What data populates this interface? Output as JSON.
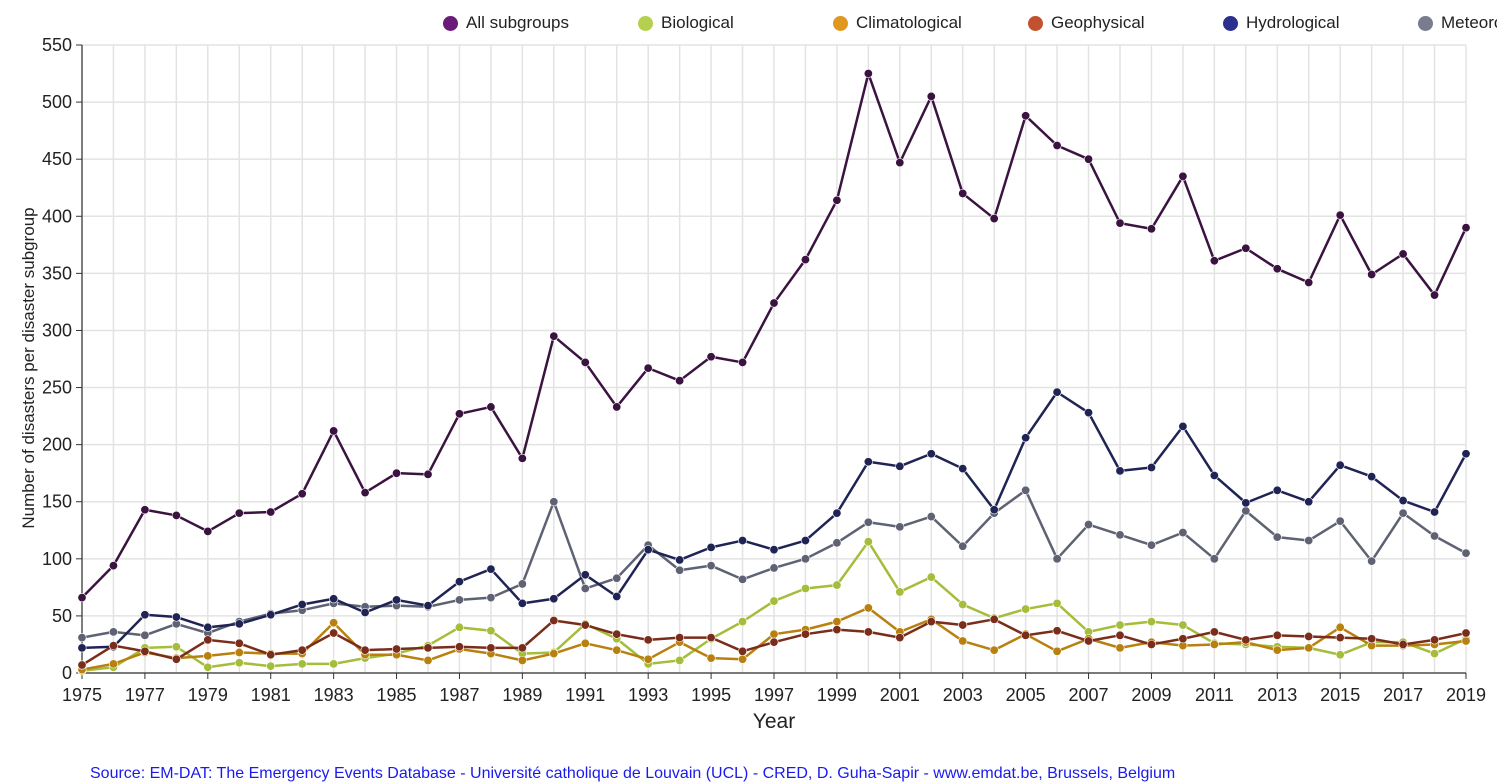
{
  "chart_data": {
    "type": "line",
    "xlabel": "Year",
    "ylabel": "Number of disasters per  disaster subgroup",
    "ylim": [
      0,
      550
    ],
    "yticks": [
      0,
      50,
      100,
      150,
      200,
      250,
      300,
      350,
      400,
      450,
      500,
      550
    ],
    "xlim": [
      1975,
      2019
    ],
    "xticks": [
      1975,
      1977,
      1979,
      1981,
      1983,
      1985,
      1987,
      1989,
      1991,
      1993,
      1995,
      1997,
      1999,
      2001,
      2003,
      2005,
      2007,
      2009,
      2011,
      2013,
      2015,
      2017,
      2019
    ],
    "grid": true,
    "legend_position": "top",
    "x": [
      1975,
      1976,
      1977,
      1978,
      1979,
      1980,
      1981,
      1982,
      1983,
      1984,
      1985,
      1986,
      1987,
      1988,
      1989,
      1990,
      1991,
      1992,
      1993,
      1994,
      1995,
      1996,
      1997,
      1998,
      1999,
      2000,
      2001,
      2002,
      2003,
      2004,
      2005,
      2006,
      2007,
      2008,
      2009,
      2010,
      2011,
      2012,
      2013,
      2014,
      2015,
      2016,
      2017,
      2018,
      2019
    ],
    "series": [
      {
        "name": "All subgroups",
        "legend_color": "#6a1b7a",
        "line_color": "#3b1340",
        "values": [
          66,
          94,
          143,
          138,
          124,
          140,
          141,
          157,
          212,
          158,
          175,
          174,
          227,
          233,
          188,
          295,
          272,
          233,
          267,
          256,
          277,
          272,
          324,
          362,
          414,
          525,
          447,
          505,
          420,
          398,
          488,
          462,
          450,
          394,
          389,
          435,
          361,
          372,
          354,
          342,
          401,
          349,
          367,
          331,
          390
        ]
      },
      {
        "name": "Biological",
        "legend_color": "#b5d04f",
        "line_color": "#a4bd3a",
        "values": [
          2,
          5,
          22,
          23,
          5,
          9,
          6,
          8,
          8,
          13,
          17,
          24,
          40,
          37,
          17,
          18,
          43,
          30,
          8,
          11,
          30,
          45,
          63,
          74,
          77,
          115,
          71,
          84,
          60,
          48,
          56,
          61,
          36,
          42,
          45,
          42,
          26,
          25,
          23,
          22,
          16,
          27,
          27,
          17,
          30
        ]
      },
      {
        "name": "Climatological",
        "legend_color": "#e0971e",
        "line_color": "#b8800f",
        "values": [
          3,
          8,
          18,
          13,
          15,
          18,
          17,
          17,
          44,
          16,
          16,
          11,
          21,
          17,
          11,
          17,
          26,
          20,
          12,
          27,
          13,
          12,
          34,
          38,
          45,
          57,
          36,
          47,
          28,
          20,
          34,
          19,
          30,
          22,
          27,
          24,
          25,
          27,
          20,
          22,
          40,
          24,
          24,
          25,
          28
        ]
      },
      {
        "name": "Geophysical",
        "legend_color": "#c0522f",
        "line_color": "#7a2d1a",
        "values": [
          7,
          24,
          19,
          12,
          29,
          26,
          16,
          20,
          35,
          20,
          21,
          22,
          23,
          22,
          22,
          46,
          42,
          34,
          29,
          31,
          31,
          19,
          27,
          34,
          38,
          36,
          31,
          45,
          42,
          47,
          33,
          37,
          28,
          33,
          25,
          30,
          36,
          29,
          33,
          32,
          31,
          30,
          25,
          29,
          35
        ]
      },
      {
        "name": "Hydrological",
        "legend_color": "#2b2f8f",
        "line_color": "#1f2454",
        "values": [
          22,
          23,
          51,
          49,
          40,
          43,
          51,
          60,
          65,
          53,
          64,
          59,
          80,
          91,
          61,
          65,
          86,
          67,
          108,
          99,
          110,
          116,
          108,
          116,
          140,
          185,
          181,
          192,
          179,
          143,
          206,
          246,
          228,
          177,
          180,
          216,
          173,
          149,
          160,
          150,
          182,
          172,
          151,
          141,
          192
        ]
      },
      {
        "name": "Meteorological",
        "legend_color": "#797c8f",
        "line_color": "#5e6273",
        "values": [
          31,
          36,
          33,
          43,
          35,
          45,
          52,
          55,
          61,
          58,
          59,
          58,
          64,
          66,
          78,
          150,
          74,
          83,
          112,
          90,
          94,
          82,
          92,
          100,
          114,
          132,
          128,
          137,
          111,
          140,
          160,
          100,
          130,
          121,
          112,
          123,
          100,
          142,
          119,
          116,
          133,
          98,
          140,
          120,
          105
        ]
      }
    ]
  },
  "legend_labels": [
    "All subgroups",
    "Biological",
    "Climatological",
    "Geophysical",
    "Hydrological",
    "Meteorological"
  ],
  "source_text": "Source: EM-DAT: The Emergency Events Database - Université catholique de Louvain (UCL) - CRED, D. Guha-Sapir - www.emdat.be, Brussels, Belgium"
}
